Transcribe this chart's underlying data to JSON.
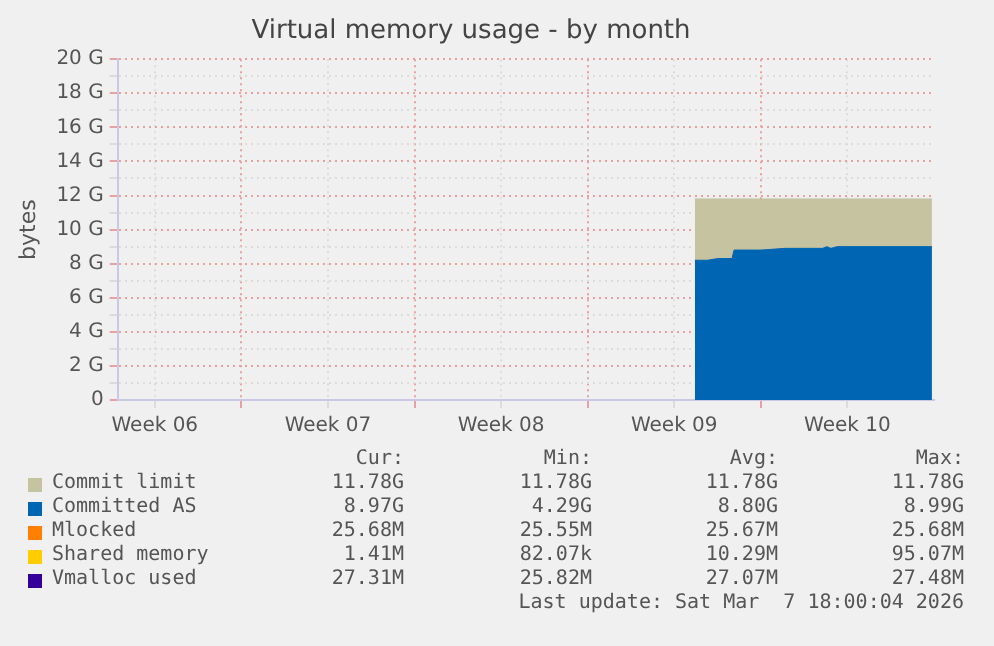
{
  "chart_data": {
    "type": "area",
    "title": "Virtual memory usage - by month",
    "ylabel": "bytes",
    "xlim": [
      "2026-02-04T00:00",
      "2026-03-09T00:00"
    ],
    "xticks": [
      {
        "value": "2026-02-05T12:00",
        "label": "Week 06"
      },
      {
        "value": "2026-02-09",
        "label": null
      },
      {
        "value": "2026-02-12T12:00",
        "label": "Week 07"
      },
      {
        "value": "2026-02-16",
        "label": null
      },
      {
        "value": "2026-02-19T12:00",
        "label": "Week 08"
      },
      {
        "value": "2026-02-23",
        "label": null
      },
      {
        "value": "2026-02-26T12:00",
        "label": "Week 09"
      },
      {
        "value": "2026-03-02",
        "label": null
      },
      {
        "value": "2026-03-05T12:00",
        "label": "Week 10"
      }
    ],
    "ylim": [
      0,
      20
    ],
    "yticks": [
      {
        "value": 0,
        "label": "0"
      },
      {
        "value": 1,
        "label": null
      },
      {
        "value": 2,
        "label": "2 G"
      },
      {
        "value": 3,
        "label": null
      },
      {
        "value": 4,
        "label": "4 G"
      },
      {
        "value": 5,
        "label": null
      },
      {
        "value": 6,
        "label": "6 G"
      },
      {
        "value": 7,
        "label": null
      },
      {
        "value": 8,
        "label": "8 G"
      },
      {
        "value": 9,
        "label": null
      },
      {
        "value": 10,
        "label": "10 G"
      },
      {
        "value": 11,
        "label": null
      },
      {
        "value": 12,
        "label": "12 G"
      },
      {
        "value": 13,
        "label": null
      },
      {
        "value": 14,
        "label": "14 G"
      },
      {
        "value": 15,
        "label": null
      },
      {
        "value": 16,
        "label": "16 G"
      },
      {
        "value": 17,
        "label": null
      },
      {
        "value": 18,
        "label": "18 G"
      },
      {
        "value": 19,
        "label": null
      },
      {
        "value": 20,
        "label": "20 G"
      }
    ],
    "grid": true,
    "legend": "bottom",
    "series": [
      {
        "name": "Commit limit",
        "color": "#c5c3a0",
        "x": [
          "2026-02-27T08:00",
          "2026-03-08T22:00"
        ],
        "values": [
          11.8,
          11.8
        ]
      },
      {
        "name": "Committed AS",
        "color": "#0066b3",
        "x": [
          "2026-02-27T08:00",
          "2026-02-27T20:00",
          "2026-02-28T06:00",
          "2026-02-28T20:00",
          "2026-02-28T22:00",
          "2026-03-02T00:00",
          "2026-03-03T00:00",
          "2026-03-04T12:00",
          "2026-03-04T16:00",
          "2026-03-04T20:00",
          "2026-03-05T02:00",
          "2026-03-08T22:00"
        ],
        "values": [
          8.2,
          8.2,
          8.3,
          8.3,
          8.8,
          8.8,
          8.9,
          8.9,
          9,
          8.9,
          9,
          9
        ]
      },
      {
        "name": "Mlocked",
        "color": "#ff8000",
        "values": [
          null
        ]
      },
      {
        "name": "Shared memory",
        "color": "#ffcc00",
        "values": [
          null
        ]
      },
      {
        "name": "Vmalloc used",
        "color": "#330099",
        "values": [
          null
        ]
      }
    ],
    "annotations": [
      "Cur:",
      "Min:",
      "Avg:",
      "Max:",
      "11.78G",
      "11.78G",
      "11.78G",
      "11.78G",
      "8.97G",
      "4.29G",
      "8.80G",
      "8.99G",
      "25.68M",
      "25.55M",
      "25.67M",
      "25.68M",
      "1.41M",
      "82.07k",
      "10.29M",
      "95.07M",
      "27.31M",
      "25.82M",
      "27.07M",
      "27.48M",
      "Last update: Sat Mar  7 18:00:04 2026"
    ]
  }
}
